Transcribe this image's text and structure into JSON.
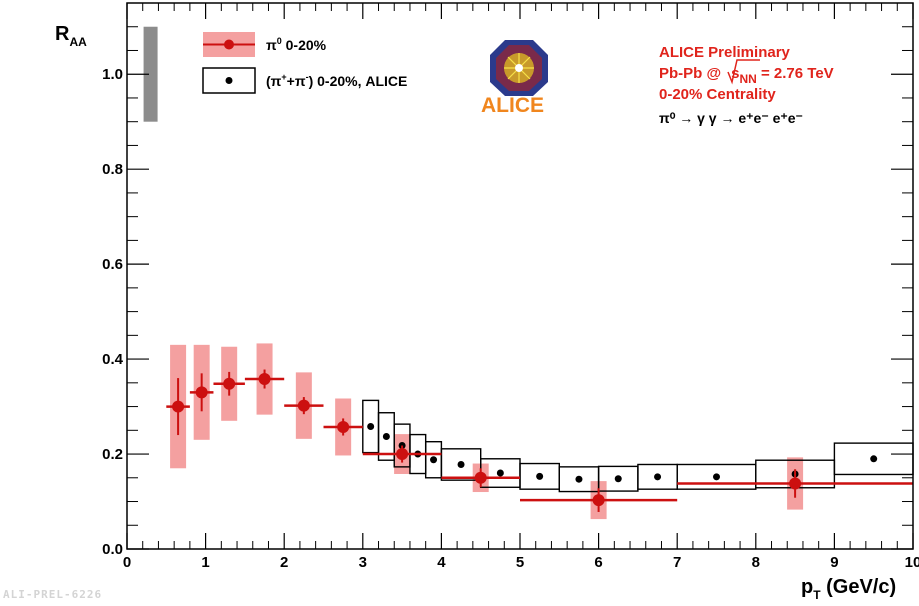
{
  "chart_data": {
    "type": "scatter",
    "title": "",
    "xlabel_main": "p",
    "xlabel_sub": "T",
    "xlabel_rest": " (GeV/c)",
    "ylabel_main": "R",
    "ylabel_sub": "AA",
    "xlim": [
      0,
      10
    ],
    "ylim": [
      0,
      1.15
    ],
    "xticks": [
      0,
      1,
      2,
      3,
      4,
      5,
      6,
      7,
      8,
      9,
      10
    ],
    "xtick_labels": [
      "0",
      "1",
      "2",
      "3",
      "4",
      "5",
      "6",
      "7",
      "8",
      "9",
      "10"
    ],
    "yticks": [
      0.0,
      0.2,
      0.4,
      0.6,
      0.8,
      1.0
    ],
    "ytick_labels": [
      "0.0",
      "0.2",
      "0.4",
      "0.6",
      "0.8",
      "1.0"
    ],
    "normalization_box": {
      "x": 0.3,
      "y_low": 0.9,
      "y_high": 1.1,
      "color": "#8c8c8c"
    },
    "series": [
      {
        "name": "π⁰ 0-20%",
        "legend_sym": "π",
        "legend_sup": "0",
        "legend_rest": " 0-20%",
        "color": "#cc1010",
        "syst_fill": "#f4a0a0",
        "points": [
          {
            "x": 0.65,
            "y": 0.3,
            "xerr": 0.15,
            "stat": 0.06,
            "syst": 0.13
          },
          {
            "x": 0.95,
            "y": 0.33,
            "xerr": 0.15,
            "stat": 0.04,
            "syst": 0.1
          },
          {
            "x": 1.3,
            "y": 0.348,
            "xerr": 0.2,
            "stat": 0.025,
            "syst": 0.078
          },
          {
            "x": 1.75,
            "y": 0.358,
            "xerr": 0.25,
            "stat": 0.02,
            "syst": 0.075
          },
          {
            "x": 2.25,
            "y": 0.302,
            "xerr": 0.25,
            "stat": 0.018,
            "syst": 0.07
          },
          {
            "x": 2.75,
            "y": 0.257,
            "xerr": 0.25,
            "stat": 0.018,
            "syst": 0.06
          },
          {
            "x": 3.5,
            "y": 0.2,
            "xerr": 0.5,
            "stat": 0.018,
            "syst": 0.042
          },
          {
            "x": 4.5,
            "y": 0.15,
            "xerr": 0.5,
            "stat": 0.02,
            "syst": 0.03
          },
          {
            "x": 6.0,
            "y": 0.103,
            "xerr": 1.0,
            "stat": 0.025,
            "syst": 0.04
          },
          {
            "x": 8.5,
            "y": 0.138,
            "xerr": 1.5,
            "stat": 0.03,
            "syst": 0.055
          }
        ]
      },
      {
        "name": "(π⁺+π⁻) 0-20%, ALICE",
        "legend_open": "(π",
        "legend_sup1": "+",
        "legend_mid": "+π",
        "legend_sup2": "-",
        "legend_rest": ")  0-20%, ALICE",
        "color": "#000000",
        "points": [
          {
            "x": 3.1,
            "y": 0.258,
            "xerr": 0.1,
            "syst": 0.055
          },
          {
            "x": 3.3,
            "y": 0.237,
            "xerr": 0.1,
            "syst": 0.05
          },
          {
            "x": 3.5,
            "y": 0.218,
            "xerr": 0.1,
            "syst": 0.045
          },
          {
            "x": 3.7,
            "y": 0.2,
            "xerr": 0.1,
            "syst": 0.041
          },
          {
            "x": 3.9,
            "y": 0.188,
            "xerr": 0.1,
            "syst": 0.038
          },
          {
            "x": 4.25,
            "y": 0.178,
            "xerr": 0.25,
            "syst": 0.033
          },
          {
            "x": 4.75,
            "y": 0.16,
            "xerr": 0.25,
            "syst": 0.03
          },
          {
            "x": 5.25,
            "y": 0.153,
            "xerr": 0.25,
            "syst": 0.027
          },
          {
            "x": 5.75,
            "y": 0.147,
            "xerr": 0.25,
            "syst": 0.026
          },
          {
            "x": 6.25,
            "y": 0.148,
            "xerr": 0.25,
            "syst": 0.026
          },
          {
            "x": 6.75,
            "y": 0.152,
            "xerr": 0.25,
            "syst": 0.026
          },
          {
            "x": 7.5,
            "y": 0.152,
            "xerr": 0.5,
            "syst": 0.026
          },
          {
            "x": 8.5,
            "y": 0.158,
            "xerr": 0.5,
            "syst": 0.029
          },
          {
            "x": 9.5,
            "y": 0.19,
            "xerr": 0.5,
            "syst": 0.033
          }
        ]
      }
    ],
    "legend_position": "top-left",
    "grid": false
  },
  "info": {
    "line1": "ALICE Preliminary",
    "line2_pre": "Pb-Pb @",
    "line2_s": "s",
    "line2_sub": "NN",
    "line2_post": " = 2.76 TeV",
    "line3": "0-20% Centrality",
    "line4": "π⁰ → γ γ → e⁺e⁻ e⁺e⁻"
  },
  "logo": {
    "text": "ALICE"
  },
  "watermark": "ALI-PREL-6226"
}
